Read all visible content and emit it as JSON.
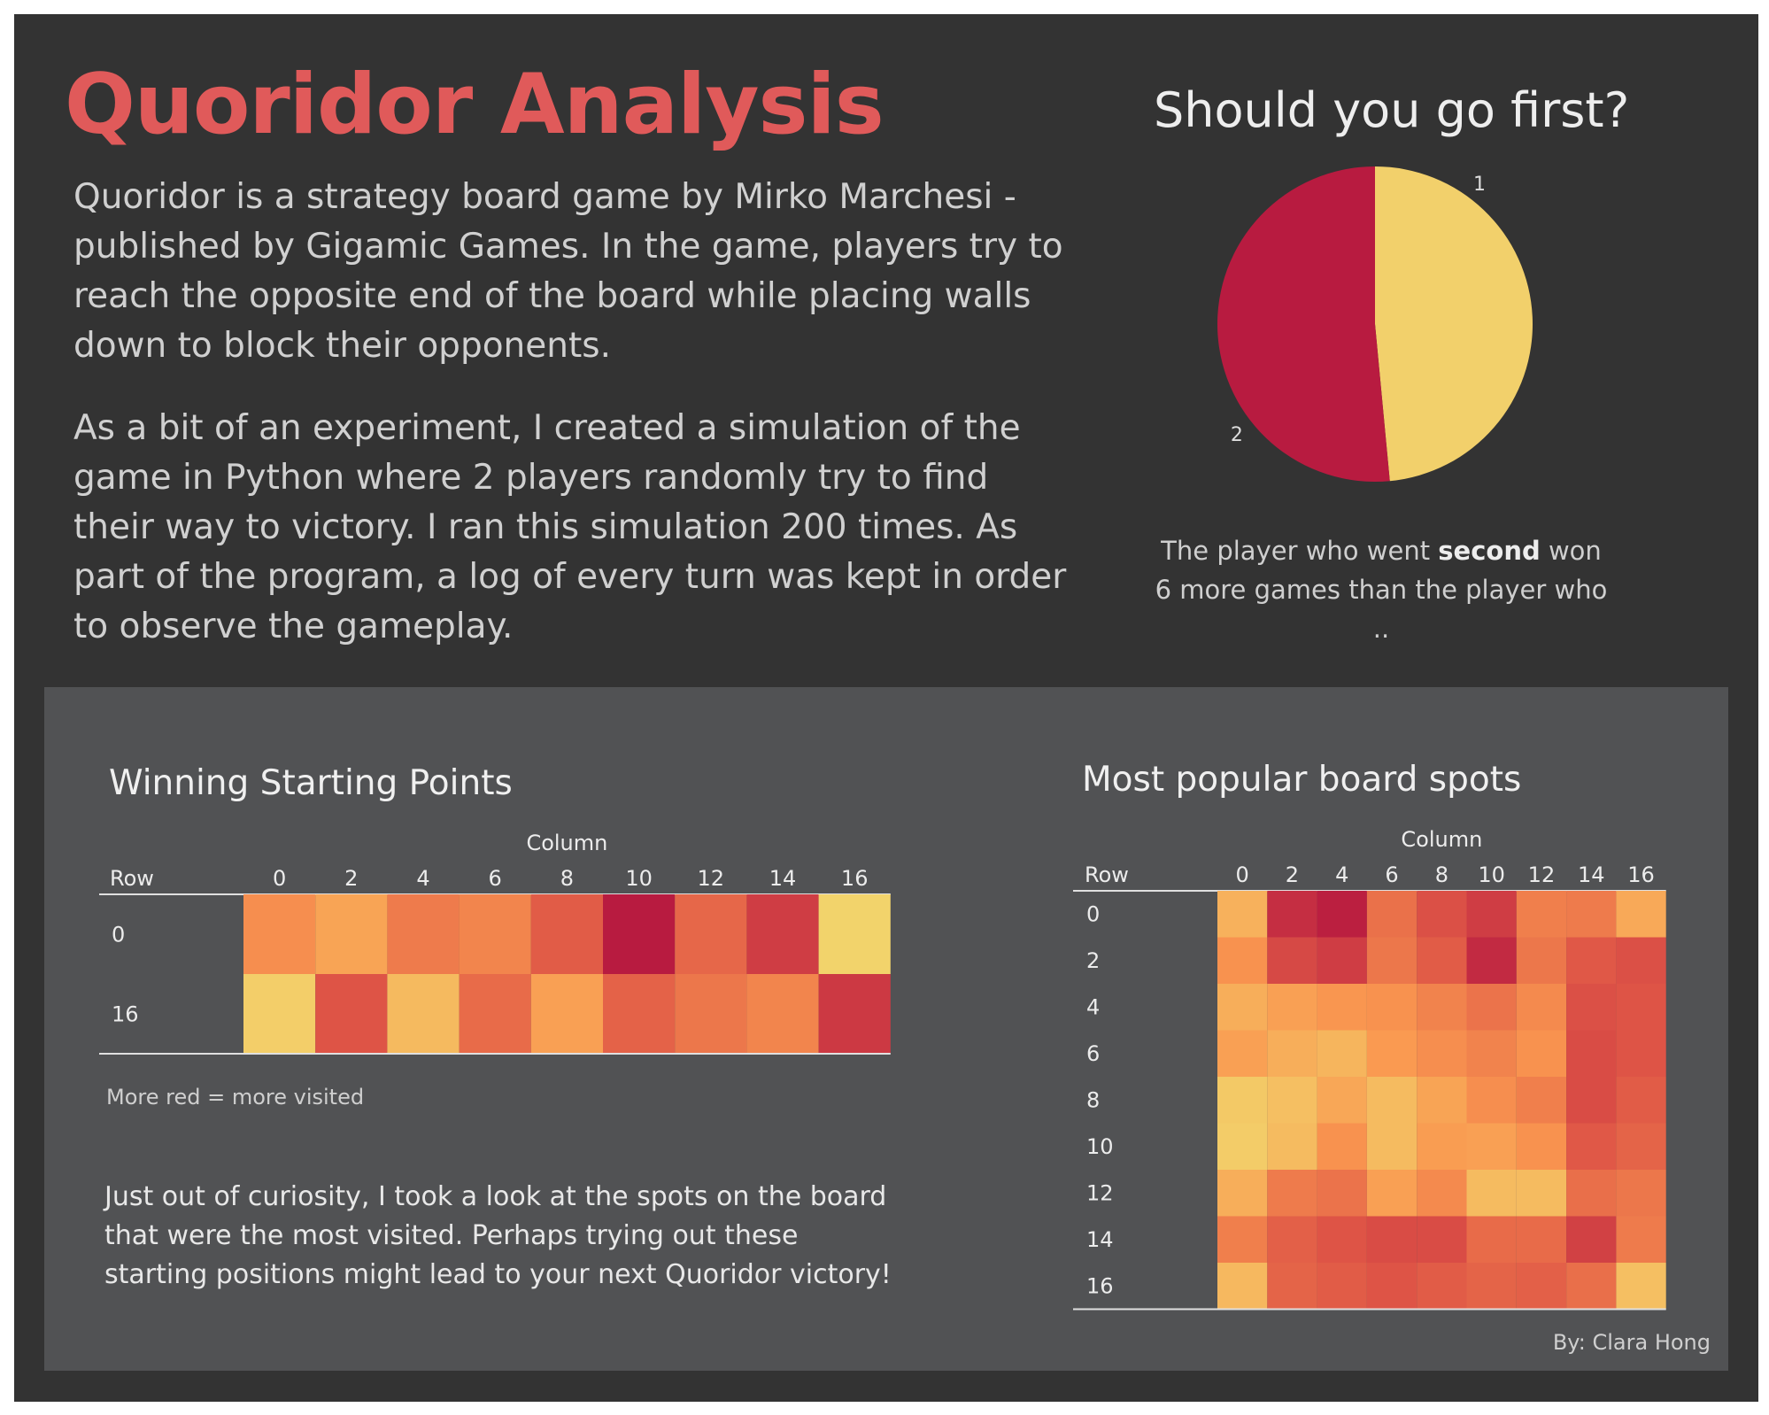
{
  "title": "Quoridor Analysis",
  "intro": {
    "p1": "Quoridor is a strategy board game by Mirko Marchesi - published by Gigamic Games. In the game, players try to reach the opposite end of the board while placing walls down to block their opponents.",
    "p2": "As a bit of an experiment, I created a simulation of the game in Python where 2 players randomly try to find their way to victory. I ran this simulation 200 times. As part of the program, a log of every turn was kept in order to observe the gameplay."
  },
  "pie": {
    "caption_before": "The player who went ",
    "caption_bold": "second",
    "caption_after": " won 6 more games than the player who .."
  },
  "heatmap_note": "More red = more visited",
  "curiosity": "Just out of curiosity, I took a look at the spots on the board that were the most visited. Perhaps trying out these starting positions might lead to your next Quoridor victory!",
  "byline": "By: Clara Hong",
  "colors": {
    "background": "#333333",
    "panel": "#515254",
    "title": "#e05a5a",
    "player_1": "#f2d06b",
    "player_2": "#b81b40",
    "scale_low": "#f2d36b",
    "scale_high": "#b81b40"
  },
  "chart_data": [
    {
      "type": "pie",
      "title": "Should you go first?",
      "labels": [
        "1",
        "2"
      ],
      "values": [
        97,
        103
      ],
      "colors": [
        "#f2d06b",
        "#b81b40"
      ]
    },
    {
      "type": "heatmap",
      "title": "Winning Starting Points",
      "xlabel": "Column",
      "ylabel": "Row",
      "x": [
        "0",
        "2",
        "4",
        "6",
        "8",
        "10",
        "12",
        "14",
        "16"
      ],
      "y": [
        "0",
        "16"
      ],
      "values": [
        [
          0.4,
          0.28,
          0.5,
          0.45,
          0.66,
          1.0,
          0.6,
          0.82,
          0.0
        ],
        [
          0.03,
          0.7,
          0.15,
          0.58,
          0.3,
          0.63,
          0.52,
          0.45,
          0.84
        ]
      ]
    },
    {
      "type": "heatmap",
      "title": "Most popular board spots",
      "xlabel": "Column",
      "ylabel": "Row",
      "x": [
        "0",
        "2",
        "4",
        "6",
        "8",
        "10",
        "12",
        "14",
        "16"
      ],
      "y": [
        "0",
        "2",
        "4",
        "6",
        "8",
        "10",
        "12",
        "14",
        "16"
      ],
      "values": [
        [
          0.2,
          0.9,
          0.98,
          0.55,
          0.72,
          0.82,
          0.48,
          0.5,
          0.25
        ],
        [
          0.38,
          0.76,
          0.82,
          0.52,
          0.66,
          0.92,
          0.52,
          0.68,
          0.72
        ],
        [
          0.22,
          0.3,
          0.36,
          0.38,
          0.46,
          0.54,
          0.42,
          0.72,
          0.7
        ],
        [
          0.3,
          0.22,
          0.18,
          0.34,
          0.4,
          0.46,
          0.38,
          0.74,
          0.7
        ],
        [
          0.06,
          0.12,
          0.26,
          0.14,
          0.28,
          0.4,
          0.48,
          0.74,
          0.66
        ],
        [
          0.04,
          0.14,
          0.38,
          0.14,
          0.32,
          0.3,
          0.38,
          0.68,
          0.62
        ],
        [
          0.22,
          0.5,
          0.54,
          0.3,
          0.42,
          0.14,
          0.14,
          0.56,
          0.52
        ],
        [
          0.48,
          0.64,
          0.7,
          0.74,
          0.74,
          0.58,
          0.58,
          0.8,
          0.5
        ],
        [
          0.16,
          0.62,
          0.66,
          0.7,
          0.66,
          0.62,
          0.64,
          0.56,
          0.12
        ]
      ]
    }
  ]
}
